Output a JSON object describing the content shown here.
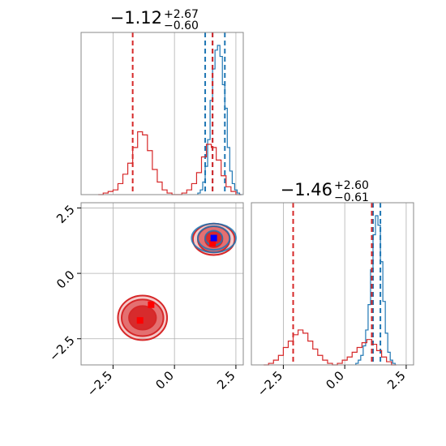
{
  "chart_data": [
    {
      "type": "histogram",
      "panel": "marginal-param-1",
      "title": {
        "main": "−1.12",
        "sup": "+2.67",
        "sub": "−0.60"
      },
      "xlim": [
        -3.8,
        2.8
      ],
      "grid": true,
      "series": [
        {
          "name": "",
          "color": "#1f77b4",
          "x": [
            1.0,
            1.1,
            1.2,
            1.3,
            1.4,
            1.5,
            1.6,
            1.7,
            1.8,
            1.9,
            2.0,
            2.1,
            2.2,
            2.3,
            2.4,
            2.5,
            2.6,
            2.7
          ],
          "counts": [
            1,
            3,
            8,
            18,
            35,
            60,
            80,
            92,
            95,
            88,
            70,
            55,
            30,
            15,
            7,
            3,
            1,
            0
          ],
          "quantiles": [
            1.25,
            1.55,
            2.05
          ]
        },
        {
          "name": "",
          "color": "#d62728",
          "x": [
            -3.0,
            -2.8,
            -2.6,
            -2.4,
            -2.2,
            -2.0,
            -1.8,
            -1.6,
            -1.4,
            -1.2,
            -1.0,
            -0.8,
            -0.6,
            -0.4,
            -0.2,
            0.0,
            0.2,
            0.4,
            0.6,
            0.8,
            1.0,
            1.2,
            1.4,
            1.6,
            1.8,
            2.0,
            2.2,
            2.4,
            2.6
          ],
          "counts": [
            0,
            1,
            2,
            3,
            7,
            13,
            20,
            30,
            40,
            38,
            28,
            16,
            8,
            3,
            1,
            0,
            0,
            1,
            3,
            7,
            14,
            24,
            32,
            30,
            22,
            12,
            5,
            2,
            0
          ],
          "quantiles": [
            -1.7,
            1.55
          ]
        }
      ]
    },
    {
      "type": "histogram",
      "panel": "marginal-param-2",
      "title": {
        "main": "−1.46",
        "sup": "+2.60",
        "sub": "−0.61"
      },
      "xlim": [
        -3.8,
        2.8
      ],
      "xticks": [
        "−2.5",
        "0.0",
        "2.5"
      ],
      "grid": true,
      "series": [
        {
          "name": "",
          "color": "#1f77b4",
          "x": [
            0.5,
            0.6,
            0.7,
            0.8,
            0.9,
            1.0,
            1.1,
            1.2,
            1.3,
            1.4,
            1.5,
            1.6,
            1.7,
            1.8,
            1.9,
            2.0
          ],
          "counts": [
            1,
            3,
            6,
            12,
            22,
            38,
            60,
            82,
            94,
            88,
            65,
            40,
            20,
            8,
            3,
            1
          ],
          "quantiles": [
            1.15,
            1.45
          ]
        },
        {
          "name": "",
          "color": "#d62728",
          "x": [
            -3.2,
            -3.0,
            -2.8,
            -2.6,
            -2.4,
            -2.2,
            -2.0,
            -1.8,
            -1.6,
            -1.4,
            -1.2,
            -1.0,
            -0.8,
            -0.6,
            -0.4,
            -0.2,
            0.0,
            0.2,
            0.4,
            0.6,
            0.8,
            1.0,
            1.2,
            1.4,
            1.6,
            1.8,
            2.0
          ],
          "counts": [
            0,
            1,
            3,
            6,
            11,
            15,
            19,
            22,
            20,
            15,
            10,
            6,
            3,
            1,
            0,
            1,
            3,
            5,
            8,
            11,
            14,
            16,
            13,
            9,
            5,
            2,
            0
          ],
          "quantiles": [
            -2.1,
            1.1
          ]
        }
      ]
    },
    {
      "type": "contour",
      "panel": "joint",
      "xlim": [
        -3.8,
        2.8
      ],
      "ylim": [
        -3.5,
        2.7
      ],
      "xticks": [
        "−2.5",
        "0.0",
        "2.5"
      ],
      "yticks": [
        "2.5",
        "0.0",
        "−2.5"
      ],
      "grid": true,
      "clusters": [
        {
          "color": "#d62728",
          "filled": true,
          "center": [
            -1.3,
            -1.7
          ],
          "radii": [
            [
              0.55,
              0.45
            ],
            [
              0.85,
              0.7
            ],
            [
              1.0,
              0.85
            ]
          ]
        },
        {
          "color": "#d62728",
          "filled": true,
          "center": [
            1.6,
            1.3
          ],
          "radii": [
            [
              0.35,
              0.3
            ],
            [
              0.65,
              0.5
            ],
            [
              0.85,
              0.6
            ]
          ]
        },
        {
          "color": "#1f77b4",
          "filled": false,
          "center": [
            1.6,
            1.35
          ],
          "radii": [
            [
              0.35,
              0.28
            ],
            [
              0.65,
              0.45
            ],
            [
              0.9,
              0.55
            ]
          ]
        }
      ],
      "markers": [
        {
          "color": "#ff0000",
          "x": -1.4,
          "y": -1.8
        },
        {
          "color": "#ff0000",
          "x": -0.95,
          "y": -1.2
        },
        {
          "color": "#ff0000",
          "x": 1.55,
          "y": 1.15
        },
        {
          "color": "#0000ff",
          "x": 1.6,
          "y": 1.35
        }
      ]
    }
  ]
}
